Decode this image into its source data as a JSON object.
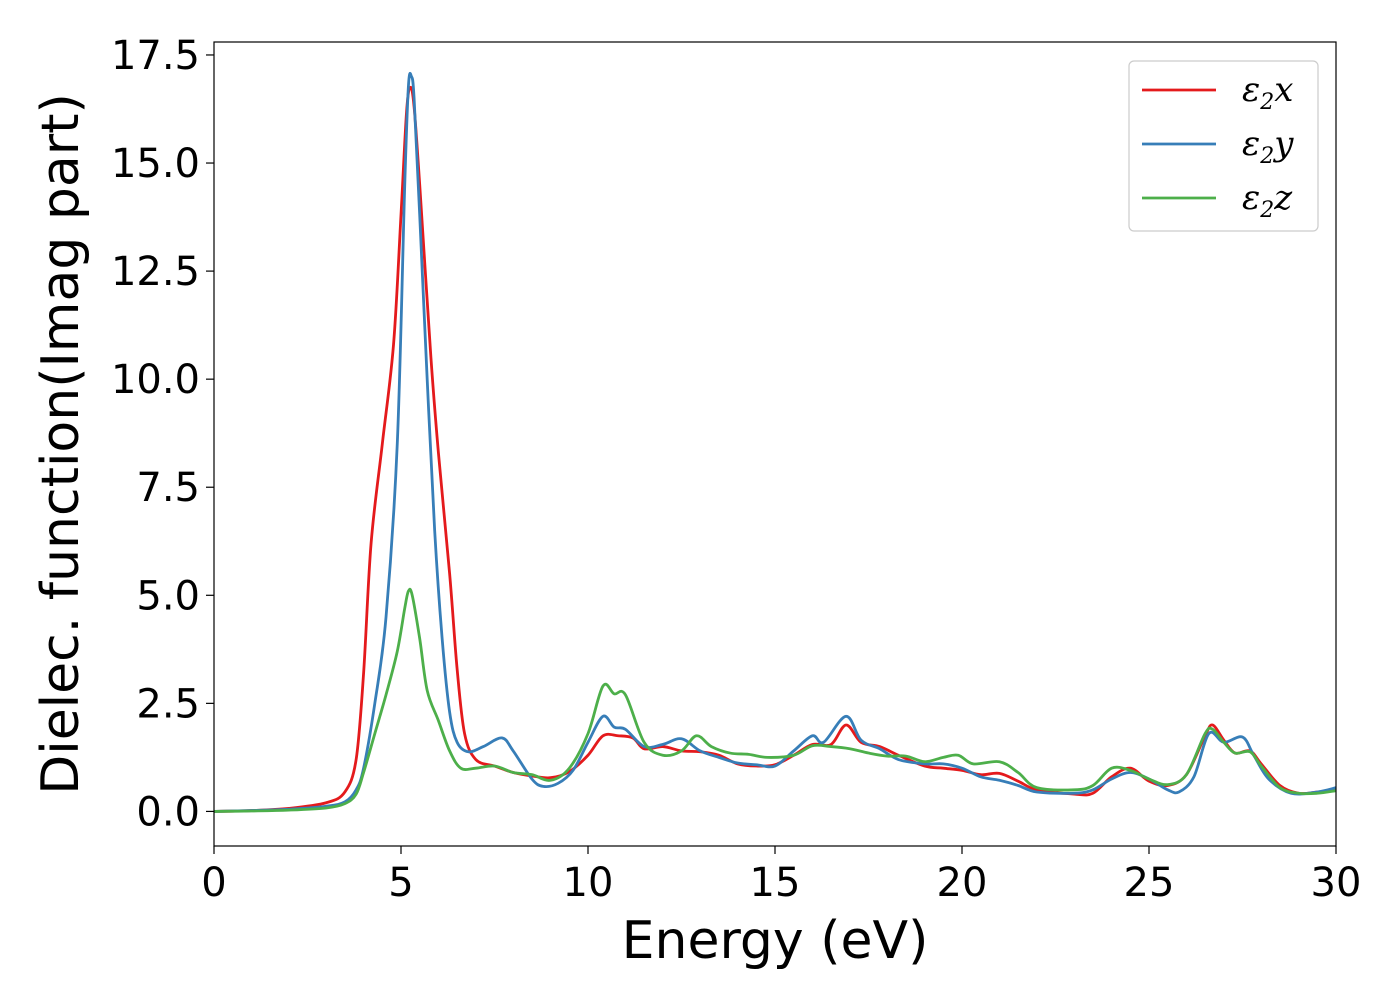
{
  "chart_data": {
    "type": "line",
    "title": "",
    "xlabel": "Energy (eV)",
    "ylabel": "Dielec. function(Imag part)",
    "xlim": [
      0,
      30
    ],
    "ylim": [
      -0.8,
      17.8
    ],
    "xticks": [
      0,
      5,
      10,
      15,
      20,
      25,
      30
    ],
    "xtick_labels": [
      "0",
      "5",
      "10",
      "15",
      "20",
      "25",
      "30"
    ],
    "yticks": [
      0.0,
      2.5,
      5.0,
      7.5,
      10.0,
      12.5,
      15.0,
      17.5
    ],
    "ytick_labels": [
      "0.0",
      "2.5",
      "5.0",
      "7.5",
      "10.0",
      "12.5",
      "15.0",
      "17.5"
    ],
    "grid": false,
    "legend_position": "top-right",
    "series": [
      {
        "name": "ε2x",
        "name_base": "ε",
        "name_sub": "2",
        "name_suffix": "x",
        "color": "#e41a1c",
        "points": [
          [
            0,
            0
          ],
          [
            1,
            0.02
          ],
          [
            2,
            0.07
          ],
          [
            3,
            0.2
          ],
          [
            3.5,
            0.45
          ],
          [
            3.8,
            1.2
          ],
          [
            4.0,
            3.2
          ],
          [
            4.2,
            6.2
          ],
          [
            4.5,
            8.5
          ],
          [
            4.8,
            10.8
          ],
          [
            5.0,
            13.8
          ],
          [
            5.15,
            16.2
          ],
          [
            5.25,
            16.75
          ],
          [
            5.35,
            16.3
          ],
          [
            5.5,
            14.5
          ],
          [
            5.8,
            10.5
          ],
          [
            6.0,
            8.3
          ],
          [
            6.3,
            5.5
          ],
          [
            6.5,
            3.3
          ],
          [
            6.7,
            1.8
          ],
          [
            7.0,
            1.2
          ],
          [
            7.5,
            1.05
          ],
          [
            8.0,
            0.9
          ],
          [
            8.5,
            0.82
          ],
          [
            9.0,
            0.78
          ],
          [
            9.5,
            0.92
          ],
          [
            10.0,
            1.3
          ],
          [
            10.4,
            1.75
          ],
          [
            10.8,
            1.75
          ],
          [
            11.2,
            1.7
          ],
          [
            11.5,
            1.45
          ],
          [
            12.0,
            1.5
          ],
          [
            12.5,
            1.4
          ],
          [
            13.0,
            1.38
          ],
          [
            13.5,
            1.3
          ],
          [
            14.0,
            1.1
          ],
          [
            14.5,
            1.05
          ],
          [
            15.0,
            1.08
          ],
          [
            15.5,
            1.3
          ],
          [
            16.0,
            1.55
          ],
          [
            16.5,
            1.55
          ],
          [
            16.9,
            2.0
          ],
          [
            17.3,
            1.6
          ],
          [
            17.8,
            1.5
          ],
          [
            18.3,
            1.3
          ],
          [
            19.0,
            1.05
          ],
          [
            19.5,
            1.0
          ],
          [
            20.0,
            0.95
          ],
          [
            20.5,
            0.85
          ],
          [
            21.0,
            0.88
          ],
          [
            21.5,
            0.7
          ],
          [
            22.0,
            0.5
          ],
          [
            23.0,
            0.4
          ],
          [
            23.5,
            0.42
          ],
          [
            24.0,
            0.8
          ],
          [
            24.5,
            1.0
          ],
          [
            25.0,
            0.7
          ],
          [
            25.5,
            0.6
          ],
          [
            26.0,
            0.85
          ],
          [
            26.5,
            1.75
          ],
          [
            26.7,
            2.0
          ],
          [
            27.0,
            1.65
          ],
          [
            27.3,
            1.35
          ],
          [
            27.7,
            1.4
          ],
          [
            28.0,
            1.1
          ],
          [
            28.5,
            0.6
          ],
          [
            29.0,
            0.42
          ],
          [
            29.5,
            0.45
          ],
          [
            30.0,
            0.5
          ]
        ]
      },
      {
        "name": "ε2y",
        "name_base": "ε",
        "name_sub": "2",
        "name_suffix": "y",
        "color": "#377eb8",
        "points": [
          [
            0,
            0
          ],
          [
            1,
            0.02
          ],
          [
            2,
            0.05
          ],
          [
            3,
            0.12
          ],
          [
            3.5,
            0.22
          ],
          [
            3.8,
            0.5
          ],
          [
            4.0,
            1.0
          ],
          [
            4.3,
            2.5
          ],
          [
            4.6,
            4.5
          ],
          [
            4.9,
            8.5
          ],
          [
            5.1,
            14.5
          ],
          [
            5.2,
            16.8
          ],
          [
            5.28,
            17.0
          ],
          [
            5.35,
            16.5
          ],
          [
            5.5,
            13.8
          ],
          [
            5.7,
            10.0
          ],
          [
            5.9,
            6.5
          ],
          [
            6.1,
            4.0
          ],
          [
            6.3,
            2.3
          ],
          [
            6.5,
            1.6
          ],
          [
            6.8,
            1.38
          ],
          [
            7.2,
            1.5
          ],
          [
            7.7,
            1.7
          ],
          [
            8.0,
            1.4
          ],
          [
            8.5,
            0.75
          ],
          [
            8.8,
            0.58
          ],
          [
            9.2,
            0.65
          ],
          [
            9.6,
            0.95
          ],
          [
            10.0,
            1.6
          ],
          [
            10.4,
            2.2
          ],
          [
            10.7,
            1.95
          ],
          [
            11.0,
            1.9
          ],
          [
            11.5,
            1.5
          ],
          [
            12.0,
            1.55
          ],
          [
            12.5,
            1.68
          ],
          [
            13.0,
            1.4
          ],
          [
            13.5,
            1.25
          ],
          [
            14.0,
            1.12
          ],
          [
            14.5,
            1.08
          ],
          [
            15.0,
            1.05
          ],
          [
            15.5,
            1.4
          ],
          [
            16.0,
            1.75
          ],
          [
            16.3,
            1.6
          ],
          [
            16.9,
            2.2
          ],
          [
            17.3,
            1.65
          ],
          [
            17.8,
            1.45
          ],
          [
            18.3,
            1.2
          ],
          [
            19.0,
            1.1
          ],
          [
            19.5,
            1.1
          ],
          [
            20.0,
            1.0
          ],
          [
            20.5,
            0.8
          ],
          [
            21.0,
            0.72
          ],
          [
            21.5,
            0.6
          ],
          [
            22.0,
            0.45
          ],
          [
            23.0,
            0.42
          ],
          [
            23.5,
            0.5
          ],
          [
            24.0,
            0.75
          ],
          [
            24.5,
            0.9
          ],
          [
            25.0,
            0.75
          ],
          [
            25.5,
            0.5
          ],
          [
            25.8,
            0.45
          ],
          [
            26.2,
            0.8
          ],
          [
            26.6,
            1.8
          ],
          [
            27.0,
            1.6
          ],
          [
            27.5,
            1.72
          ],
          [
            27.8,
            1.3
          ],
          [
            28.2,
            0.75
          ],
          [
            28.8,
            0.42
          ],
          [
            29.5,
            0.45
          ],
          [
            30.0,
            0.55
          ]
        ]
      },
      {
        "name": "ε2z",
        "name_base": "ε",
        "name_sub": "2",
        "name_suffix": "z",
        "color": "#4daf4a",
        "points": [
          [
            0,
            0
          ],
          [
            1,
            0.01
          ],
          [
            2,
            0.03
          ],
          [
            3,
            0.08
          ],
          [
            3.5,
            0.18
          ],
          [
            3.8,
            0.4
          ],
          [
            4.0,
            0.9
          ],
          [
            4.3,
            1.8
          ],
          [
            4.6,
            2.7
          ],
          [
            4.9,
            3.7
          ],
          [
            5.1,
            4.7
          ],
          [
            5.2,
            5.1
          ],
          [
            5.3,
            5.0
          ],
          [
            5.5,
            4.0
          ],
          [
            5.7,
            2.8
          ],
          [
            6.0,
            2.1
          ],
          [
            6.3,
            1.4
          ],
          [
            6.6,
            1.0
          ],
          [
            7.0,
            1.0
          ],
          [
            7.5,
            1.05
          ],
          [
            8.0,
            0.9
          ],
          [
            8.5,
            0.85
          ],
          [
            9.0,
            0.72
          ],
          [
            9.5,
            1.0
          ],
          [
            10.0,
            1.8
          ],
          [
            10.4,
            2.9
          ],
          [
            10.7,
            2.72
          ],
          [
            11.0,
            2.7
          ],
          [
            11.5,
            1.6
          ],
          [
            12.0,
            1.3
          ],
          [
            12.5,
            1.4
          ],
          [
            12.9,
            1.75
          ],
          [
            13.3,
            1.5
          ],
          [
            13.8,
            1.35
          ],
          [
            14.3,
            1.32
          ],
          [
            14.8,
            1.25
          ],
          [
            15.5,
            1.3
          ],
          [
            16.0,
            1.52
          ],
          [
            16.5,
            1.5
          ],
          [
            17.0,
            1.45
          ],
          [
            17.5,
            1.35
          ],
          [
            18.0,
            1.28
          ],
          [
            18.5,
            1.28
          ],
          [
            19.0,
            1.15
          ],
          [
            19.5,
            1.25
          ],
          [
            19.9,
            1.3
          ],
          [
            20.3,
            1.1
          ],
          [
            21.0,
            1.15
          ],
          [
            21.5,
            0.9
          ],
          [
            22.0,
            0.55
          ],
          [
            23.0,
            0.5
          ],
          [
            23.5,
            0.6
          ],
          [
            24.0,
            1.0
          ],
          [
            24.5,
            0.95
          ],
          [
            25.0,
            0.75
          ],
          [
            25.5,
            0.62
          ],
          [
            26.0,
            0.85
          ],
          [
            26.5,
            1.8
          ],
          [
            26.7,
            1.9
          ],
          [
            27.0,
            1.6
          ],
          [
            27.3,
            1.35
          ],
          [
            27.7,
            1.38
          ],
          [
            28.0,
            1.05
          ],
          [
            28.5,
            0.55
          ],
          [
            29.0,
            0.42
          ],
          [
            29.5,
            0.42
          ],
          [
            30.0,
            0.48
          ]
        ]
      }
    ]
  }
}
